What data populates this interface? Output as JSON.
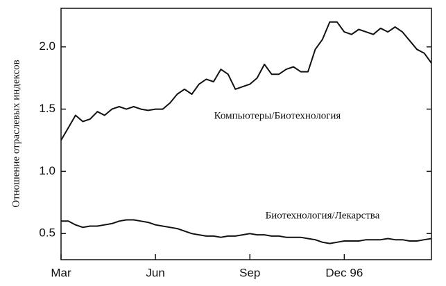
{
  "chart_data": {
    "type": "line",
    "y_label": "Отношение отраслевых индексов",
    "categories": [
      "Mar",
      null,
      null,
      null,
      null,
      null,
      null,
      null,
      null,
      null,
      null,
      null,
      null,
      "Jun",
      null,
      null,
      null,
      null,
      null,
      null,
      null,
      null,
      null,
      null,
      null,
      null,
      "Sep",
      null,
      null,
      null,
      null,
      null,
      null,
      null,
      null,
      null,
      null,
      null,
      null,
      "Dec 96",
      null,
      null,
      null,
      null,
      null,
      null,
      null,
      null,
      null,
      null,
      null,
      null
    ],
    "series": [
      {
        "name": "Компьютеры/Биотехнология",
        "color": "#111111",
        "values": [
          1.25,
          1.35,
          1.45,
          1.4,
          1.42,
          1.48,
          1.45,
          1.5,
          1.52,
          1.5,
          1.52,
          1.5,
          1.49,
          1.5,
          1.5,
          1.55,
          1.62,
          1.66,
          1.62,
          1.7,
          1.74,
          1.72,
          1.82,
          1.78,
          1.66,
          1.68,
          1.7,
          1.75,
          1.86,
          1.78,
          1.78,
          1.82,
          1.84,
          1.8,
          1.8,
          1.98,
          2.06,
          2.2,
          2.2,
          2.12,
          2.1,
          2.14,
          2.12,
          2.1,
          2.15,
          2.12,
          2.16,
          2.12,
          2.05,
          1.98,
          1.95,
          1.87
        ]
      },
      {
        "name": "Биотехнология/Лекарства",
        "color": "#111111",
        "values": [
          0.6,
          0.6,
          0.57,
          0.55,
          0.56,
          0.56,
          0.57,
          0.58,
          0.6,
          0.61,
          0.61,
          0.6,
          0.59,
          0.57,
          0.56,
          0.55,
          0.54,
          0.52,
          0.5,
          0.49,
          0.48,
          0.48,
          0.47,
          0.48,
          0.48,
          0.49,
          0.5,
          0.49,
          0.49,
          0.48,
          0.48,
          0.47,
          0.47,
          0.47,
          0.46,
          0.45,
          0.43,
          0.42,
          0.43,
          0.44,
          0.44,
          0.44,
          0.45,
          0.45,
          0.45,
          0.46,
          0.45,
          0.45,
          0.44,
          0.44,
          0.45,
          0.46
        ]
      }
    ],
    "ylim": [
      0.29,
      2.31
    ],
    "yticks": [
      0.5,
      {
        "value": 1.0,
        "label": "1.0"
      },
      1.5,
      {
        "value": 2.0,
        "label": "2.0"
      }
    ],
    "grid": false
  }
}
